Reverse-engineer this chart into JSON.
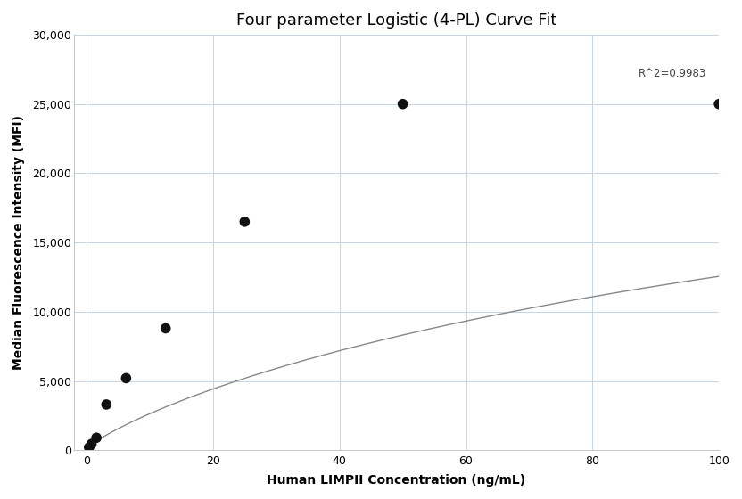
{
  "title": "Four parameter Logistic (4-PL) Curve Fit",
  "xlabel": "Human LIMPII Concentration (ng/mL)",
  "ylabel": "Median Fluorescence Intensity (MFI)",
  "scatter_x": [
    0.39,
    0.78,
    1.56,
    3.13,
    6.25,
    12.5,
    25,
    50,
    100
  ],
  "scatter_y": [
    200,
    450,
    900,
    3300,
    5200,
    8800,
    16500,
    25000,
    25000
  ],
  "xlim": [
    -2,
    100
  ],
  "ylim": [
    0,
    30000
  ],
  "xticks": [
    0,
    20,
    40,
    60,
    80,
    100
  ],
  "yticks": [
    0,
    5000,
    10000,
    15000,
    20000,
    25000,
    30000
  ],
  "r_squared": "R^2=0.9983",
  "r2_x": 98,
  "r2_y": 26800,
  "curve_color": "#888888",
  "scatter_color": "#111111",
  "scatter_size": 70,
  "bg_color": "#ffffff",
  "grid_color": "#c5d5e5",
  "title_fontsize": 13,
  "label_fontsize": 10,
  "tick_fontsize": 9,
  "annotation_fontsize": 8.5
}
